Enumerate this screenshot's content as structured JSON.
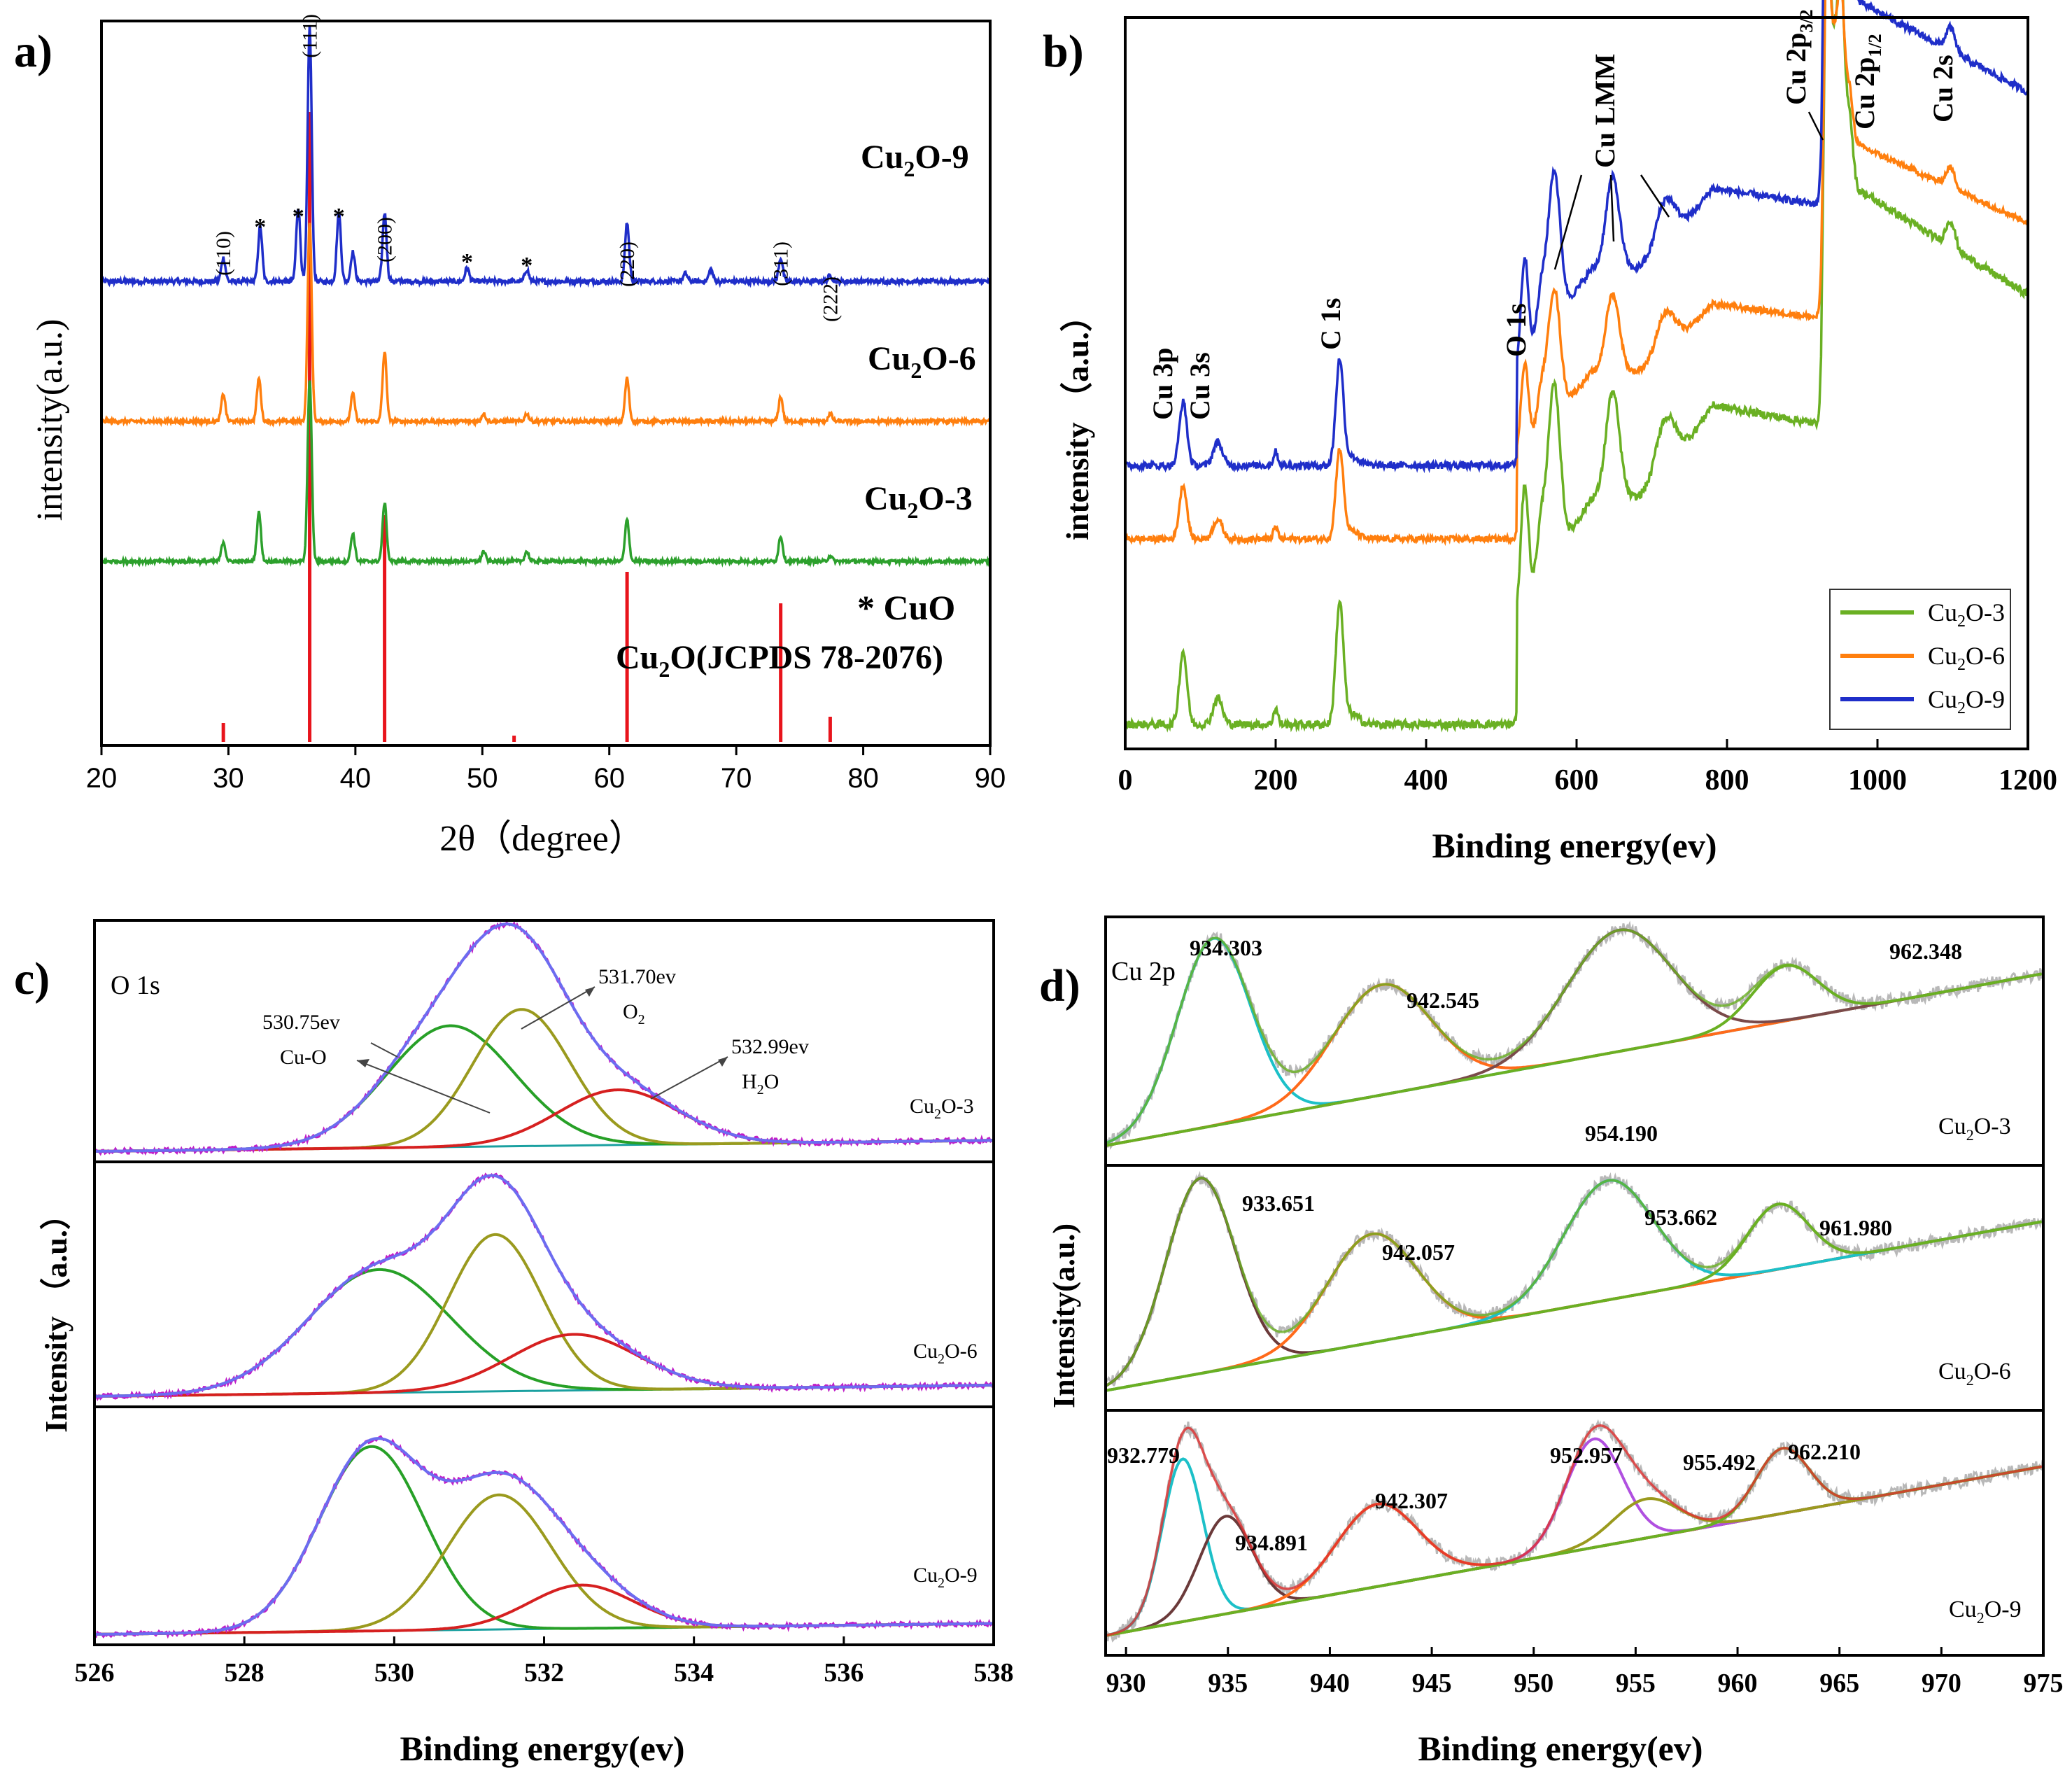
{
  "chart_data": [
    {
      "panel": "a)",
      "type": "line",
      "xlabel": "2θ（degree）",
      "ylabel": "intensity(a.u.)",
      "xlim": [
        20,
        90
      ],
      "xticks": [
        "20",
        "30",
        "40",
        "50",
        "60",
        "70",
        "80",
        "90"
      ],
      "series": [
        {
          "name": "Cu2O-9",
          "name_main": "Cu",
          "name_sub": "2",
          "name_rest": "O-9",
          "color": "#1f2ec9",
          "peaks": [
            [
              29.6,
              0.12
            ],
            [
              32.5,
              0.28
            ],
            [
              35.5,
              0.38
            ],
            [
              36.4,
              1.3
            ],
            [
              38.7,
              0.35
            ],
            [
              39.8,
              0.15
            ],
            [
              42.3,
              0.35
            ],
            [
              48.8,
              0.07
            ],
            [
              53.5,
              0.06
            ],
            [
              61.4,
              0.3
            ],
            [
              66.0,
              0.04
            ],
            [
              68.0,
              0.06
            ],
            [
              73.5,
              0.12
            ],
            [
              77.4,
              0.03
            ]
          ]
        },
        {
          "name": "Cu2O-6",
          "name_main": "Cu",
          "name_sub": "2",
          "name_rest": "O-6",
          "color": "#ff7f0e",
          "peaks": [
            [
              29.6,
              0.18
            ],
            [
              32.4,
              0.28
            ],
            [
              36.4,
              1.3
            ],
            [
              39.8,
              0.18
            ],
            [
              42.3,
              0.45
            ],
            [
              50.1,
              0.05
            ],
            [
              53.5,
              0.05
            ],
            [
              61.4,
              0.28
            ],
            [
              73.5,
              0.16
            ],
            [
              77.4,
              0.05
            ]
          ]
        },
        {
          "name": "Cu2O-3",
          "name_main": "Cu",
          "name_sub": "2",
          "name_rest": "O-3",
          "color": "#2ca02c",
          "peaks": [
            [
              29.6,
              0.14
            ],
            [
              32.4,
              0.35
            ],
            [
              36.4,
              1.3
            ],
            [
              39.8,
              0.2
            ],
            [
              42.3,
              0.42
            ],
            [
              50.1,
              0.07
            ],
            [
              53.5,
              0.07
            ],
            [
              61.4,
              0.3
            ],
            [
              73.5,
              0.18
            ],
            [
              77.4,
              0.04
            ]
          ]
        }
      ],
      "reference": {
        "label": "Cu2O(JCPDS 78-2076)",
        "label_main": "Cu",
        "label_sub": "2",
        "label_rest": "O(JCPDS 78-2076)",
        "color": "#e8141c",
        "lines": [
          [
            29.6,
            0.03
          ],
          [
            36.4,
            1.0
          ],
          [
            42.3,
            0.36
          ],
          [
            52.5,
            0.01
          ],
          [
            61.4,
            0.27
          ],
          [
            73.5,
            0.22
          ],
          [
            77.4,
            0.04
          ]
        ]
      },
      "cuo_marker_label": "* CuO",
      "hkl_labels": [
        {
          "text": "(110)",
          "x": 29.6
        },
        {
          "text": "(111)",
          "x": 36.4
        },
        {
          "text": "(200)",
          "x": 42.3
        },
        {
          "text": "(220)",
          "x": 61.4
        },
        {
          "text": "(311)",
          "x": 73.5
        },
        {
          "text": "(222)",
          "x": 77.4
        }
      ],
      "cuo_star_positions": [
        32.5,
        35.5,
        38.7,
        48.8,
        53.5
      ]
    },
    {
      "panel": "b)",
      "type": "line",
      "xlabel": "Binding energy(ev)",
      "ylabel": "intensity  （a.u.）",
      "xlim": [
        0,
        1200
      ],
      "xticks": [
        "0",
        "200",
        "400",
        "600",
        "800",
        "1000",
        "1200"
      ],
      "series": [
        {
          "name": "Cu2O-3",
          "name_main": "Cu",
          "name_sub": "2",
          "name_rest": "O-3",
          "color": "#6ab023"
        },
        {
          "name": "Cu2O-6",
          "name_main": "Cu",
          "name_sub": "2",
          "name_rest": "O-6",
          "color": "#ff7f0e"
        },
        {
          "name": "Cu2O-9",
          "name_main": "Cu",
          "name_sub": "2",
          "name_rest": "O-9",
          "color": "#1f2ec9"
        }
      ],
      "peak_labels": [
        {
          "text": "Cu 3p",
          "x": 77
        },
        {
          "text": "Cu 3s",
          "x": 123
        },
        {
          "text": "C 1s",
          "x": 285
        },
        {
          "text": "O 1s",
          "x": 531
        },
        {
          "text": "Cu LMM",
          "x": 600
        },
        {
          "text": "Cu 2p3/2",
          "main": "Cu 2p",
          "sub": "3/2",
          "x": 932
        },
        {
          "text": "Cu 2p1/2",
          "main": "Cu 2p",
          "sub": "1/2",
          "x": 952
        },
        {
          "text": "Cu 2s",
          "x": 1097
        }
      ]
    },
    {
      "panel": "c)",
      "type": "line",
      "title": "O 1s",
      "xlabel": "Binding energy(ev)",
      "ylabel": "Intensity  （a.u.）",
      "xlim": [
        526,
        538
      ],
      "xticks": [
        "526",
        "528",
        "530",
        "532",
        "534",
        "536",
        "538"
      ],
      "component_colors": {
        "raw": "#c01ec8",
        "envelope": "#6c6cf0",
        "cu_o": "#27a027",
        "o2": "#9a9a1e",
        "h2o": "#d62020",
        "baseline": "#1aa0a0"
      },
      "subplots": [
        {
          "name": "Cu2O-3",
          "name_main": "Cu",
          "name_sub": "2",
          "name_rest": "O-3",
          "components": [
            [
              530.75,
              0.55,
              0.85
            ],
            [
              531.7,
              0.62,
              0.65
            ],
            [
              532.99,
              0.25,
              0.8
            ]
          ]
        },
        {
          "name": "Cu2O-6",
          "name_main": "Cu",
          "name_sub": "2",
          "name_rest": "O-6",
          "components": [
            [
              529.8,
              0.55,
              0.95
            ],
            [
              531.35,
              0.7,
              0.62
            ],
            [
              532.4,
              0.25,
              0.85
            ]
          ]
        },
        {
          "name": "Cu2O-9",
          "name_main": "Cu",
          "name_sub": "2",
          "name_rest": "O-9",
          "components": [
            [
              529.7,
              0.85,
              0.7
            ],
            [
              531.4,
              0.62,
              0.7
            ],
            [
              532.5,
              0.2,
              0.7
            ]
          ]
        }
      ],
      "annotations": [
        {
          "value": "530.75ev",
          "species": "Cu-O"
        },
        {
          "value": "531.70ev",
          "species": "O2",
          "species_main": "O",
          "species_sub": "2"
        },
        {
          "value": "532.99ev",
          "species": "H2O",
          "species_main": "H",
          "species_sub": "2",
          "species_rest": "O"
        }
      ]
    },
    {
      "panel": "d)",
      "type": "line",
      "title": "Cu 2p",
      "xlabel": "Binding energy(ev)",
      "ylabel": "Intensity(a.u.)",
      "xlim": [
        929,
        975
      ],
      "xticks": [
        "930",
        "935",
        "940",
        "945",
        "950",
        "955",
        "960",
        "965",
        "970",
        "975"
      ],
      "subplots": [
        {
          "name": "Cu2O-3",
          "name_main": "Cu",
          "name_sub": "2",
          "name_rest": "O-3",
          "components": [
            [
              934.303,
              0.85,
              1.8,
              "#1cc0c8"
            ],
            [
              942.545,
              0.5,
              2.4,
              "#ff6a1a"
            ],
            [
              954.19,
              0.55,
              2.6,
              "#7a4a4a"
            ],
            [
              962.348,
              0.25,
              1.6,
              "#6ab023"
            ]
          ],
          "labels": [
            "934.303",
            "942.545",
            "954.190",
            "962.348"
          ]
        },
        {
          "name": "Cu2O-6",
          "name_main": "Cu",
          "name_sub": "2",
          "name_rest": "O-6",
          "components": [
            [
              933.651,
              0.9,
              1.7,
              "#6b3a3a"
            ],
            [
              942.057,
              0.5,
              2.2,
              "#ff6a1a"
            ],
            [
              953.662,
              0.55,
              2.2,
              "#1cc0c8"
            ],
            [
              961.98,
              0.3,
              1.5,
              "#6ab023"
            ]
          ],
          "labels": [
            "933.651",
            "942.057",
            "953.662",
            "961.980"
          ]
        },
        {
          "name": "Cu2O-9",
          "name_main": "Cu",
          "name_sub": "2",
          "name_rest": "O-9",
          "components": [
            [
              932.779,
              0.75,
              1.0,
              "#1cc0c8"
            ],
            [
              934.891,
              0.45,
              1.3,
              "#6b3a3a"
            ],
            [
              942.307,
              0.38,
              2.0,
              "#ff6a1a"
            ],
            [
              952.957,
              0.5,
              1.4,
              "#b050e0"
            ],
            [
              955.492,
              0.18,
              1.6,
              "#9a9a1e"
            ],
            [
              962.21,
              0.3,
              1.3,
              "#6ab023"
            ]
          ],
          "labels": [
            "932.779",
            "934.891",
            "942.307",
            "952.957",
            "955.492",
            "962.210"
          ]
        }
      ]
    }
  ]
}
